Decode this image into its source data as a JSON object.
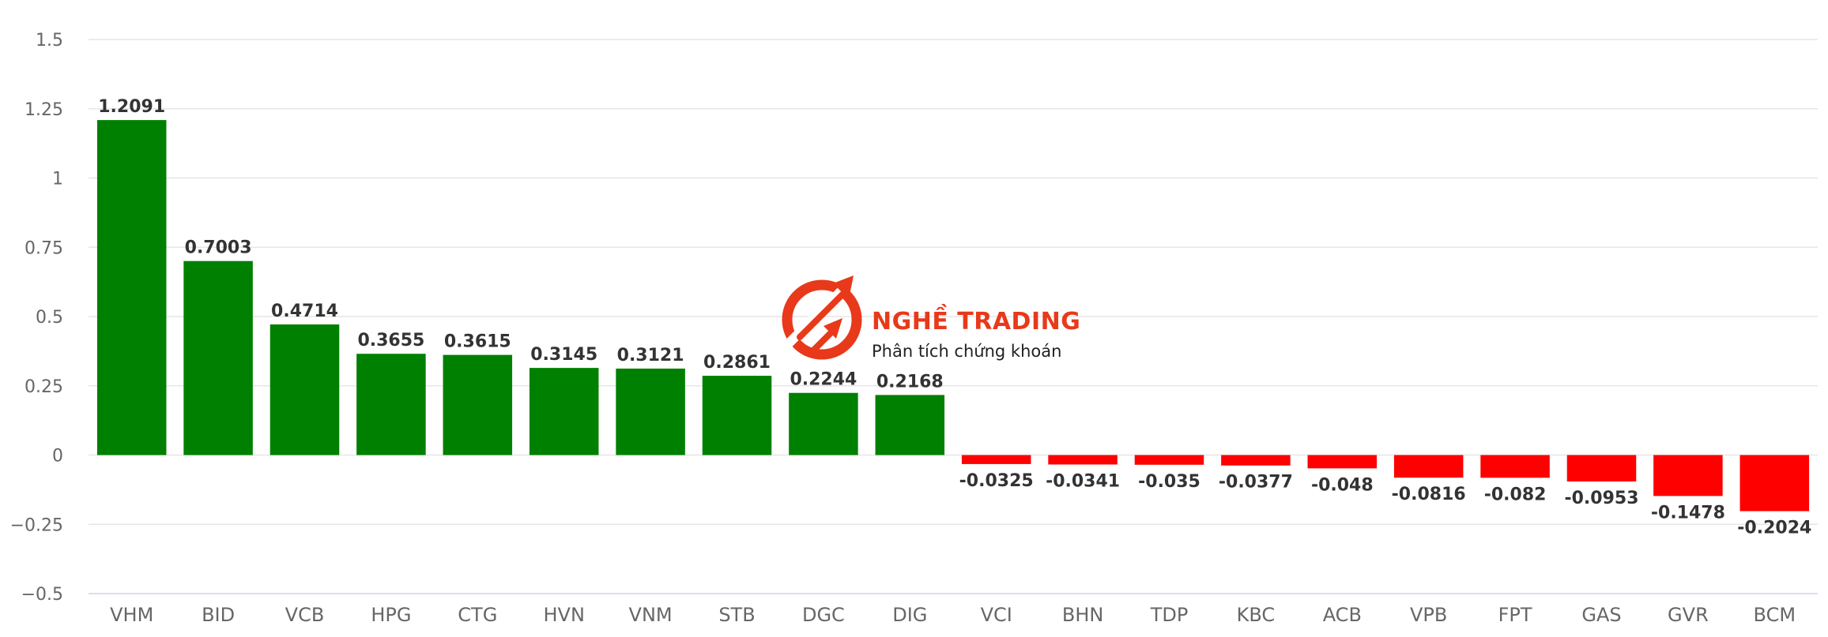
{
  "chart_data": {
    "type": "bar",
    "categories": [
      "VHM",
      "BID",
      "VCB",
      "HPG",
      "CTG",
      "HVN",
      "VNM",
      "STB",
      "DGC",
      "DIG",
      "VCI",
      "BHN",
      "TDP",
      "KBC",
      "ACB",
      "VPB",
      "FPT",
      "GAS",
      "GVR",
      "BCM"
    ],
    "values": [
      1.2091,
      0.7003,
      0.4714,
      0.3655,
      0.3615,
      0.3145,
      0.3121,
      0.2861,
      0.2244,
      0.2168,
      -0.0325,
      -0.0341,
      -0.035,
      -0.0377,
      -0.048,
      -0.0816,
      -0.082,
      -0.0953,
      -0.1478,
      -0.2024
    ],
    "data_labels": [
      "1.2091",
      "0.7003",
      "0.4714",
      "0.3655",
      "0.3615",
      "0.3145",
      "0.3121",
      "0.2861",
      "0.2244",
      "0.2168",
      "-0.0325",
      "-0.0341",
      "-0.035",
      "-0.0377",
      "-0.048",
      "-0.0816",
      "-0.082",
      "-0.0953",
      "-0.1478",
      "-0.2024"
    ],
    "y_ticks": [
      1.5,
      1.25,
      1,
      0.75,
      0.5,
      0.25,
      0,
      -0.25,
      -0.5
    ],
    "y_tick_labels": [
      "1.5",
      "1.25",
      "1",
      "0.75",
      "0.5",
      "0.25",
      "0",
      "−0.25",
      "−0.5"
    ],
    "ylim": [
      -0.5,
      1.5
    ],
    "grid": true,
    "legend": "none",
    "title": "",
    "xlabel": "",
    "ylabel": "",
    "colors": {
      "positive": "#008000",
      "negative": "#ff0000",
      "grid": "#e6e6e6",
      "tick_text": "#666666",
      "data_label": "#333333"
    }
  },
  "watermark": {
    "brand": "NGHỀ TRADING",
    "tagline": "Phân tích chứng khoán",
    "icon": "trend-arrows-logo-icon",
    "color": "#e8391a"
  }
}
